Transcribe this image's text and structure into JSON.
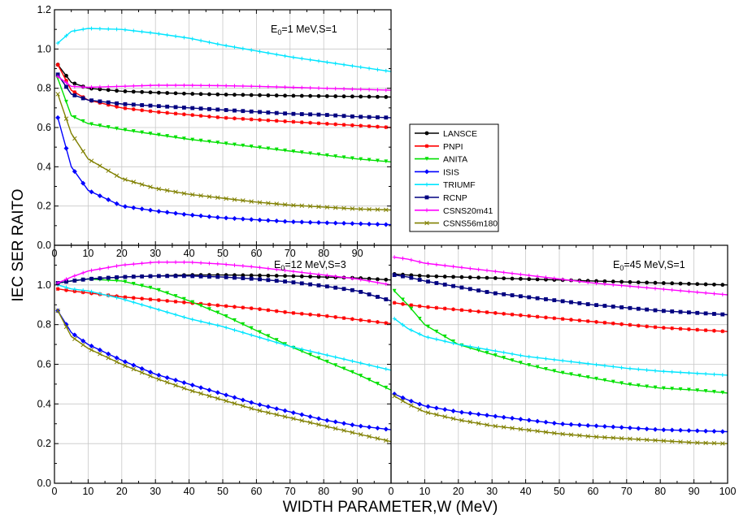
{
  "chart_data": {
    "type": "line",
    "xlabel": "WIDTH PARAMETER,W (MeV)",
    "ylabel": "IEC SER RAITO",
    "x_ticks": [
      0,
      10,
      20,
      30,
      40,
      50,
      60,
      70,
      80,
      90
    ],
    "x_ticks_right": [
      0,
      10,
      20,
      30,
      40,
      50,
      60,
      70,
      80,
      90,
      100
    ],
    "y_ticks_top": [
      0.0,
      0.2,
      0.4,
      0.6,
      0.8,
      1.0,
      1.2
    ],
    "y_ticks_bottom": [
      0.0,
      0.2,
      0.4,
      0.6,
      0.8,
      1.0
    ],
    "xlim": [
      0,
      100
    ],
    "grid": true,
    "legend": {
      "placement": "right",
      "entries": [
        "LANSCE",
        "PNPI",
        "ANITA",
        "ISIS",
        "TRIUMF",
        "RCNP",
        "CSNS20m41",
        "CSNS56m180"
      ]
    },
    "series_style": [
      {
        "name": "LANSCE",
        "color": "#000000",
        "marker": "dot"
      },
      {
        "name": "PNPI",
        "color": "#ff0000",
        "marker": "star"
      },
      {
        "name": "ANITA",
        "color": "#00e000",
        "marker": "triangle"
      },
      {
        "name": "ISIS",
        "color": "#0000ff",
        "marker": "diamond"
      },
      {
        "name": "TRIUMF",
        "color": "#00e5ff",
        "marker": "plus"
      },
      {
        "name": "RCNP",
        "color": "#000080",
        "marker": "square"
      },
      {
        "name": "CSNS20m41",
        "color": "#ff00ff",
        "marker": "plus"
      },
      {
        "name": "CSNS56m180",
        "color": "#808000",
        "marker": "x"
      }
    ],
    "panels": [
      {
        "label_main": "E",
        "label_sub": "0",
        "label_rest": "=1 MeV,S=1",
        "ylim": [
          0,
          1.2
        ],
        "x": [
          1,
          5,
          10,
          20,
          30,
          40,
          50,
          60,
          70,
          80,
          90,
          100
        ],
        "series": [
          {
            "name": "LANSCE",
            "values": [
              0.92,
              0.83,
              0.8,
              0.785,
              0.778,
              0.772,
              0.768,
              0.765,
              0.762,
              0.76,
              0.758,
              0.755
            ]
          },
          {
            "name": "PNPI",
            "values": [
              0.92,
              0.79,
              0.74,
              0.7,
              0.68,
              0.665,
              0.65,
              0.64,
              0.63,
              0.62,
              0.61,
              0.6
            ]
          },
          {
            "name": "ANITA",
            "values": [
              0.85,
              0.66,
              0.62,
              0.59,
              0.565,
              0.54,
              0.52,
              0.5,
              0.48,
              0.46,
              0.44,
              0.425
            ]
          },
          {
            "name": "ISIS",
            "values": [
              0.65,
              0.4,
              0.28,
              0.2,
              0.175,
              0.155,
              0.14,
              0.13,
              0.12,
              0.115,
              0.11,
              0.105
            ]
          },
          {
            "name": "TRIUMF",
            "values": [
              1.03,
              1.09,
              1.105,
              1.1,
              1.08,
              1.055,
              1.02,
              0.99,
              0.96,
              0.935,
              0.91,
              0.885
            ]
          },
          {
            "name": "RCNP",
            "values": [
              0.87,
              0.77,
              0.74,
              0.72,
              0.71,
              0.7,
              0.69,
              0.68,
              0.67,
              0.665,
              0.655,
              0.65
            ]
          },
          {
            "name": "CSNS20m41",
            "values": [
              0.86,
              0.81,
              0.805,
              0.81,
              0.815,
              0.815,
              0.813,
              0.81,
              0.805,
              0.8,
              0.795,
              0.79
            ]
          },
          {
            "name": "CSNS56m180",
            "values": [
              0.77,
              0.57,
              0.44,
              0.34,
              0.29,
              0.26,
              0.24,
              0.22,
              0.205,
              0.195,
              0.185,
              0.18
            ]
          }
        ]
      },
      {
        "label_main": "E",
        "label_sub": "0",
        "label_rest": "=12 MeV,S=3",
        "ylim": [
          0,
          1.2
        ],
        "x": [
          1,
          5,
          10,
          20,
          30,
          40,
          50,
          60,
          70,
          80,
          90,
          100
        ],
        "series": [
          {
            "name": "LANSCE",
            "values": [
              1.01,
              1.02,
              1.03,
              1.04,
              1.045,
              1.05,
              1.05,
              1.048,
              1.045,
              1.04,
              1.035,
              1.025
            ]
          },
          {
            "name": "PNPI",
            "values": [
              0.98,
              0.97,
              0.96,
              0.94,
              0.925,
              0.91,
              0.895,
              0.88,
              0.86,
              0.845,
              0.825,
              0.805
            ]
          },
          {
            "name": "ANITA",
            "values": [
              1.01,
              1.02,
              1.03,
              1.02,
              0.98,
              0.92,
              0.85,
              0.77,
              0.69,
              0.62,
              0.55,
              0.47
            ]
          },
          {
            "name": "ISIS",
            "values": [
              0.87,
              0.76,
              0.7,
              0.62,
              0.55,
              0.5,
              0.45,
              0.4,
              0.36,
              0.32,
              0.29,
              0.27
            ]
          },
          {
            "name": "TRIUMF",
            "values": [
              1.0,
              0.98,
              0.97,
              0.93,
              0.88,
              0.83,
              0.79,
              0.74,
              0.69,
              0.65,
              0.61,
              0.57
            ]
          },
          {
            "name": "RCNP",
            "values": [
              1.01,
              1.02,
              1.03,
              1.04,
              1.045,
              1.045,
              1.04,
              1.03,
              1.015,
              0.995,
              0.97,
              0.92
            ]
          },
          {
            "name": "CSNS20m41",
            "values": [
              1.01,
              1.04,
              1.07,
              1.1,
              1.115,
              1.115,
              1.105,
              1.09,
              1.07,
              1.05,
              1.03,
              1.0
            ]
          },
          {
            "name": "CSNS56m180",
            "values": [
              0.87,
              0.74,
              0.68,
              0.6,
              0.53,
              0.47,
              0.42,
              0.37,
              0.33,
              0.29,
              0.25,
              0.21
            ]
          }
        ]
      },
      {
        "label_main": "E",
        "label_sub": "0",
        "label_rest": "=45 MeV,S=1",
        "ylim": [
          0,
          1.2
        ],
        "x": [
          1,
          5,
          10,
          20,
          30,
          40,
          50,
          60,
          70,
          80,
          90,
          100
        ],
        "series": [
          {
            "name": "LANSCE",
            "values": [
              1.055,
              1.05,
              1.045,
              1.04,
              1.035,
              1.03,
              1.025,
              1.02,
              1.015,
              1.01,
              1.005,
              1.0
            ]
          },
          {
            "name": "PNPI",
            "values": [
              0.91,
              0.9,
              0.89,
              0.875,
              0.86,
              0.845,
              0.83,
              0.815,
              0.8,
              0.785,
              0.775,
              0.765
            ]
          },
          {
            "name": "ANITA",
            "values": [
              0.97,
              0.9,
              0.8,
              0.7,
              0.65,
              0.6,
              0.56,
              0.53,
              0.5,
              0.48,
              0.47,
              0.455
            ]
          },
          {
            "name": "ISIS",
            "values": [
              0.45,
              0.42,
              0.39,
              0.36,
              0.34,
              0.32,
              0.3,
              0.29,
              0.28,
              0.27,
              0.265,
              0.26
            ]
          },
          {
            "name": "TRIUMF",
            "values": [
              0.83,
              0.78,
              0.74,
              0.7,
              0.67,
              0.64,
              0.62,
              0.6,
              0.58,
              0.565,
              0.555,
              0.545
            ]
          },
          {
            "name": "RCNP",
            "values": [
              1.05,
              1.04,
              1.02,
              0.99,
              0.96,
              0.94,
              0.92,
              0.9,
              0.885,
              0.87,
              0.86,
              0.85
            ]
          },
          {
            "name": "CSNS20m41",
            "values": [
              1.14,
              1.13,
              1.11,
              1.09,
              1.07,
              1.05,
              1.03,
              1.01,
              0.995,
              0.98,
              0.965,
              0.95
            ]
          },
          {
            "name": "CSNS56m180",
            "values": [
              0.44,
              0.4,
              0.36,
              0.32,
              0.29,
              0.27,
              0.25,
              0.235,
              0.225,
              0.215,
              0.205,
              0.2
            ]
          }
        ]
      }
    ]
  }
}
